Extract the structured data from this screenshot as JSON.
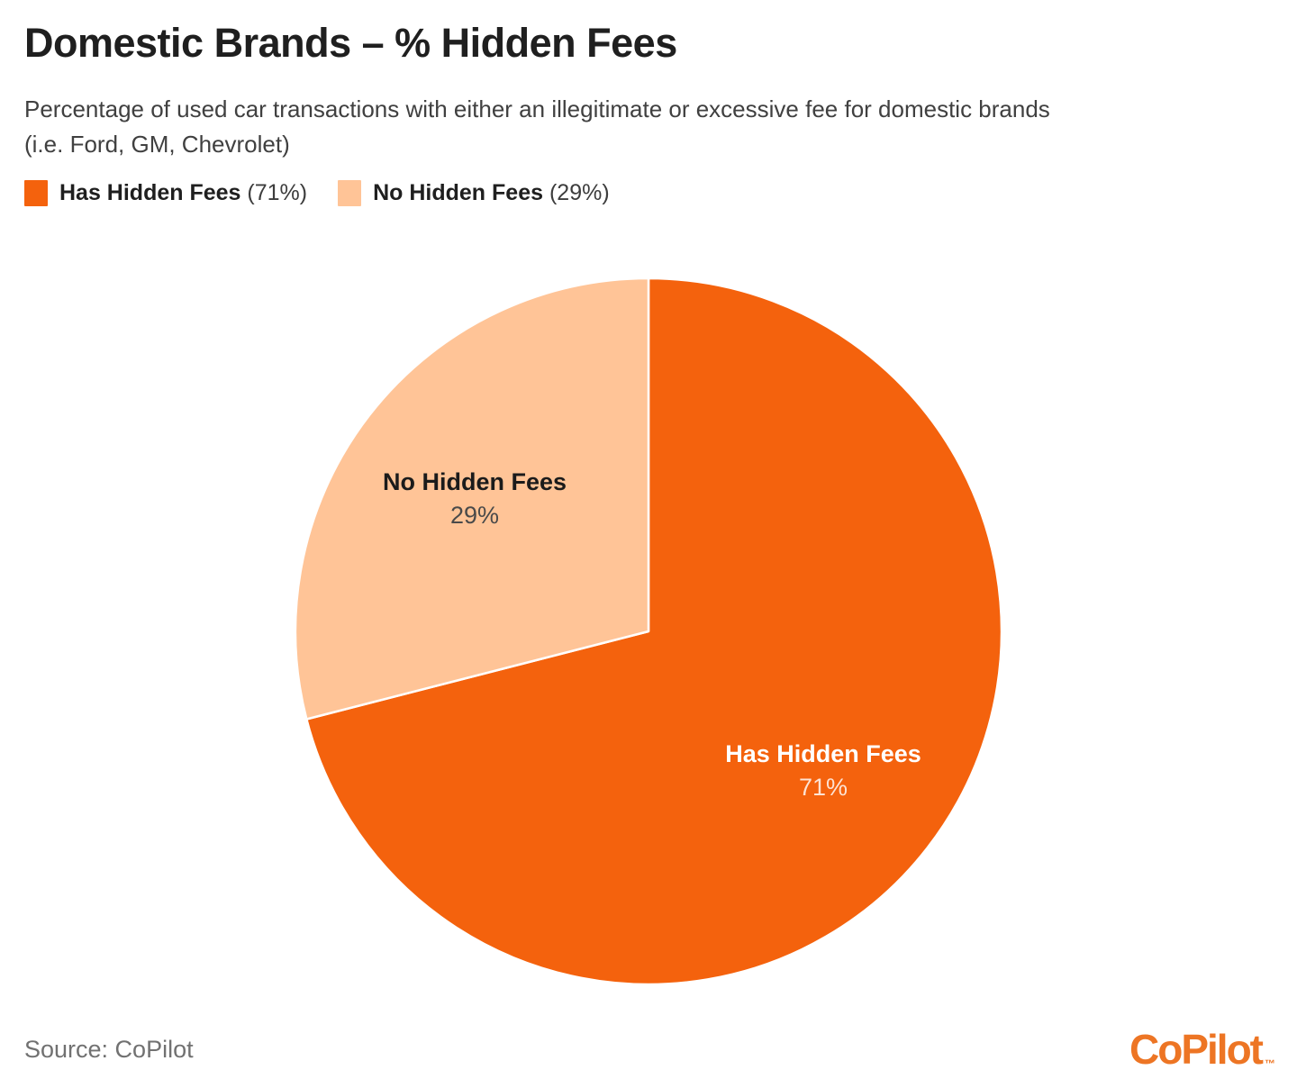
{
  "header": {
    "title": "Domestic Brands – % Hidden Fees",
    "subtitle_line1": "Percentage of used car transactions with either an illegitimate or excessive fee for domestic brands",
    "subtitle_line2": "(i.e. Ford, GM, Chevrolet)"
  },
  "legend": {
    "items": [
      {
        "label": "Has Hidden Fees",
        "value_text": "(71%)"
      },
      {
        "label": "No Hidden Fees",
        "value_text": "(29%)"
      }
    ]
  },
  "chart_data": {
    "type": "pie",
    "title": "Domestic Brands – % Hidden Fees",
    "start_angle": "12-oclock-clockwise",
    "legend_position": "top-left",
    "slices": [
      {
        "label": "Has Hidden Fees",
        "value": 71,
        "pct_text": "71%",
        "color": "#F4620D",
        "label_color": "#FFFFFF"
      },
      {
        "label": "No Hidden Fees",
        "value": 29,
        "pct_text": "29%",
        "color": "#FFC497",
        "label_color": "#1B1B1B"
      }
    ],
    "colors": {
      "has_hidden_fees": "#F4620D",
      "no_hidden_fees": "#FFC497",
      "slice_separator": "#FFFFFF"
    }
  },
  "footer": {
    "source": "Source: CoPilot",
    "logo_text": "CoPilot",
    "logo_tm": "™",
    "logo_color": "#ED7524"
  }
}
